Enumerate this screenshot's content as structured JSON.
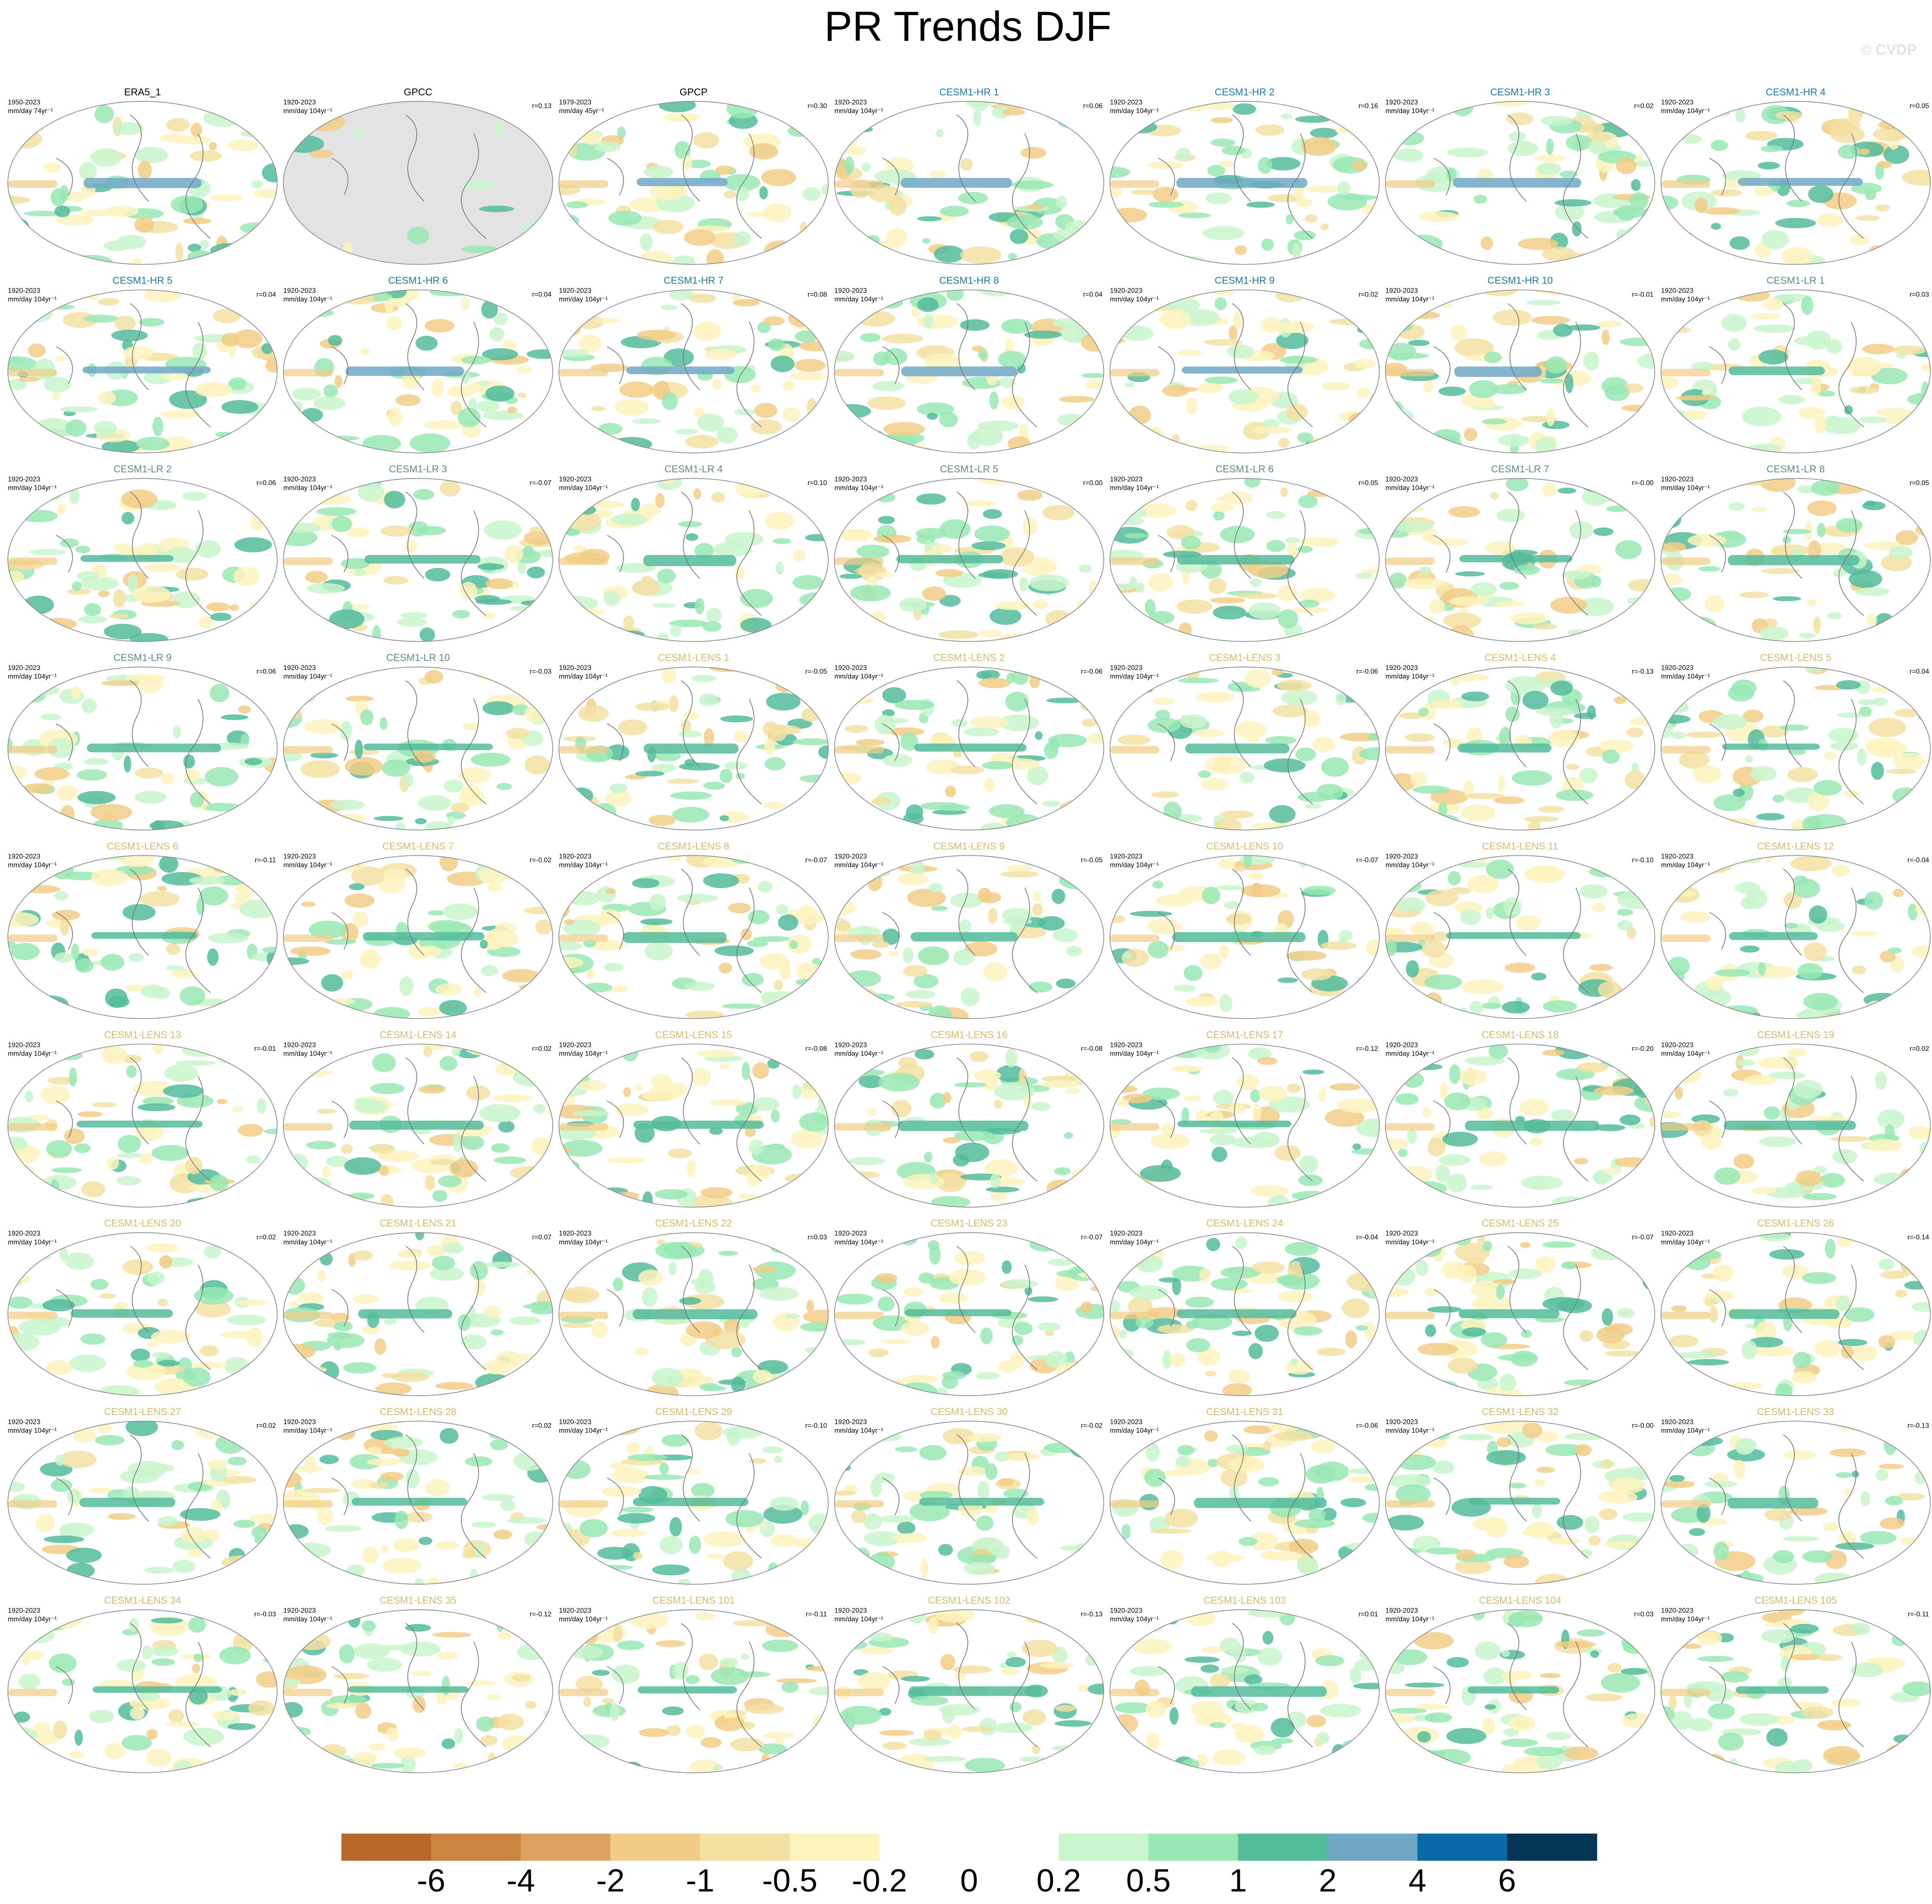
{
  "title": "PR Trends DJF",
  "watermark": "© CVDP",
  "panels": [
    {
      "title": "ERA5_1",
      "title_color": "#000000",
      "period": "1950-2023",
      "units": "mm/day 74yr⁻¹"
    },
    {
      "title": "GPCC",
      "title_color": "#000000",
      "period": "1920-2023",
      "units": "mm/day 104yr⁻¹",
      "r": "r=0.13"
    },
    {
      "title": "GPCP",
      "title_color": "#000000",
      "period": "1979-2023",
      "units": "mm/day 45yr⁻¹",
      "r": "r=0.30"
    },
    {
      "title": "CESM1-HR 1",
      "title_color": "#1f78a4",
      "period": "1920-2023",
      "units": "mm/day 104yr⁻¹",
      "r": "r=0.06"
    },
    {
      "title": "CESM1-HR 2",
      "title_color": "#1f78a4",
      "period": "1920-2023",
      "units": "mm/day 104yr⁻¹",
      "r": "r=0.16"
    },
    {
      "title": "CESM1-HR 3",
      "title_color": "#1f78a4",
      "period": "1920-2023",
      "units": "mm/day 104yr⁻¹",
      "r": "r=0.02"
    },
    {
      "title": "CESM1-HR 4",
      "title_color": "#1f78a4",
      "period": "1920-2023",
      "units": "mm/day 104yr⁻¹",
      "r": "r=0.05"
    },
    {
      "title": "CESM1-HR 5",
      "title_color": "#1f78a4",
      "period": "1920-2023",
      "units": "mm/day 104yr⁻¹",
      "r": "r=0.04"
    },
    {
      "title": "CESM1-HR 6",
      "title_color": "#1f78a4",
      "period": "1920-2023",
      "units": "mm/day 104yr⁻¹",
      "r": "r=0.04"
    },
    {
      "title": "CESM1-HR 7",
      "title_color": "#1f78a4",
      "period": "1920-2023",
      "units": "mm/day 104yr⁻¹",
      "r": "r=0.08"
    },
    {
      "title": "CESM1-HR 8",
      "title_color": "#1f78a4",
      "period": "1920-2023",
      "units": "mm/day 104yr⁻¹",
      "r": "r=0.04"
    },
    {
      "title": "CESM1-HR 9",
      "title_color": "#1f78a4",
      "period": "1920-2023",
      "units": "mm/day 104yr⁻¹",
      "r": "r=0.02"
    },
    {
      "title": "CESM1-HR 10",
      "title_color": "#1f78a4",
      "period": "1920-2023",
      "units": "mm/day 104yr⁻¹",
      "r": "r=-0.01"
    },
    {
      "title": "CESM1-LR 1",
      "title_color": "#5f8f6e",
      "period": "1920-2023",
      "units": "mm/day 104yr⁻¹",
      "r": "r=0.03"
    },
    {
      "title": "CESM1-LR 2",
      "title_color": "#5f8f6e",
      "period": "1920-2023",
      "units": "mm/day 104yr⁻¹",
      "r": "r=0.06"
    },
    {
      "title": "CESM1-LR 3",
      "title_color": "#5f8f6e",
      "period": "1920-2023",
      "units": "mm/day 104yr⁻¹",
      "r": "r=-0.07"
    },
    {
      "title": "CESM1-LR 4",
      "title_color": "#5f8f6e",
      "period": "1920-2023",
      "units": "mm/day 104yr⁻¹",
      "r": "r=0.10"
    },
    {
      "title": "CESM1-LR 5",
      "title_color": "#5f8f6e",
      "period": "1920-2023",
      "units": "mm/day 104yr⁻¹",
      "r": "r=0.00"
    },
    {
      "title": "CESM1-LR 6",
      "title_color": "#5f8f6e",
      "period": "1920-2023",
      "units": "mm/day 104yr⁻¹",
      "r": "r=0.05"
    },
    {
      "title": "CESM1-LR 7",
      "title_color": "#5f8f6e",
      "period": "1920-2023",
      "units": "mm/day 104yr⁻¹",
      "r": "r=-0.00"
    },
    {
      "title": "CESM1-LR 8",
      "title_color": "#5f8f6e",
      "period": "1920-2023",
      "units": "mm/day 104yr⁻¹",
      "r": "r=0.05"
    },
    {
      "title": "CESM1-LR 9",
      "title_color": "#5f8f6e",
      "period": "1920-2023",
      "units": "mm/day 104yr⁻¹",
      "r": "r=0.06"
    },
    {
      "title": "CESM1-LR 10",
      "title_color": "#5f8f6e",
      "period": "1920-2023",
      "units": "mm/day 104yr⁻¹",
      "r": "r=-0.03"
    },
    {
      "title": "CESM1-LENS 1",
      "title_color": "#d6bb6e",
      "period": "1920-2023",
      "units": "mm/day 104yr⁻¹",
      "r": "r=-0.05"
    },
    {
      "title": "CESM1-LENS 2",
      "title_color": "#d6bb6e",
      "period": "1920-2023",
      "units": "mm/day 104yr⁻¹",
      "r": "r=-0.06"
    },
    {
      "title": "CESM1-LENS 3",
      "title_color": "#d6bb6e",
      "period": "1920-2023",
      "units": "mm/day 104yr⁻¹",
      "r": "r=-0.06"
    },
    {
      "title": "CESM1-LENS 4",
      "title_color": "#d6bb6e",
      "period": "1920-2023",
      "units": "mm/day 104yr⁻¹",
      "r": "r=-0.13"
    },
    {
      "title": "CESM1-LENS 5",
      "title_color": "#d6bb6e",
      "period": "1920-2023",
      "units": "mm/day 104yr⁻¹",
      "r": "r=0.04"
    },
    {
      "title": "CESM1-LENS 6",
      "title_color": "#d6bb6e",
      "period": "1920-2023",
      "units": "mm/day 104yr⁻¹",
      "r": "r=-0.11"
    },
    {
      "title": "CESM1-LENS 7",
      "title_color": "#d6bb6e",
      "period": "1920-2023",
      "units": "mm/day 104yr⁻¹",
      "r": "r=-0.02"
    },
    {
      "title": "CESM1-LENS 8",
      "title_color": "#d6bb6e",
      "period": "1920-2023",
      "units": "mm/day 104yr⁻¹",
      "r": "r=-0.07"
    },
    {
      "title": "CESM1-LENS 9",
      "title_color": "#d6bb6e",
      "period": "1920-2023",
      "units": "mm/day 104yr⁻¹",
      "r": "r=-0.05"
    },
    {
      "title": "CESM1-LENS 10",
      "title_color": "#d6bb6e",
      "period": "1920-2023",
      "units": "mm/day 104yr⁻¹",
      "r": "r=-0.07"
    },
    {
      "title": "CESM1-LENS 11",
      "title_color": "#d6bb6e",
      "period": "1920-2023",
      "units": "mm/day 104yr⁻¹",
      "r": "r=-0.10"
    },
    {
      "title": "CESM1-LENS 12",
      "title_color": "#d6bb6e",
      "period": "1920-2023",
      "units": "mm/day 104yr⁻¹",
      "r": "r=-0.04"
    },
    {
      "title": "CESM1-LENS 13",
      "title_color": "#d6bb6e",
      "period": "1920-2023",
      "units": "mm/day 104yr⁻¹",
      "r": "r=-0.01"
    },
    {
      "title": "CESM1-LENS 14",
      "title_color": "#d6bb6e",
      "period": "1920-2023",
      "units": "mm/day 104yr⁻¹",
      "r": "r=0.02"
    },
    {
      "title": "CESM1-LENS 15",
      "title_color": "#d6bb6e",
      "period": "1920-2023",
      "units": "mm/day 104yr⁻¹",
      "r": "r=-0.08"
    },
    {
      "title": "CESM1-LENS 16",
      "title_color": "#d6bb6e",
      "period": "1920-2023",
      "units": "mm/day 104yr⁻¹",
      "r": "r=-0.08"
    },
    {
      "title": "CESM1-LENS 17",
      "title_color": "#d6bb6e",
      "period": "1920-2023",
      "units": "mm/day 104yr⁻¹",
      "r": "r=-0.12"
    },
    {
      "title": "CESM1-LENS 18",
      "title_color": "#d6bb6e",
      "period": "1920-2023",
      "units": "mm/day 104yr⁻¹",
      "r": "r=-0.20"
    },
    {
      "title": "CESM1-LENS 19",
      "title_color": "#d6bb6e",
      "period": "1920-2023",
      "units": "mm/day 104yr⁻¹",
      "r": "r=0.02"
    },
    {
      "title": "CESM1-LENS 20",
      "title_color": "#d6bb6e",
      "period": "1920-2023",
      "units": "mm/day 104yr⁻¹",
      "r": "r=0.02"
    },
    {
      "title": "CESM1-LENS 21",
      "title_color": "#d6bb6e",
      "period": "1920-2023",
      "units": "mm/day 104yr⁻¹",
      "r": "r=0.07"
    },
    {
      "title": "CESM1-LENS 22",
      "title_color": "#d6bb6e",
      "period": "1920-2023",
      "units": "mm/day 104yr⁻¹",
      "r": "r=0.03"
    },
    {
      "title": "CESM1-LENS 23",
      "title_color": "#d6bb6e",
      "period": "1920-2023",
      "units": "mm/day 104yr⁻¹",
      "r": "r=-0.07"
    },
    {
      "title": "CESM1-LENS 24",
      "title_color": "#d6bb6e",
      "period": "1920-2023",
      "units": "mm/day 104yr⁻¹",
      "r": "r=-0.04"
    },
    {
      "title": "CESM1-LENS 25",
      "title_color": "#d6bb6e",
      "period": "1920-2023",
      "units": "mm/day 104yr⁻¹",
      "r": "r=-0.07"
    },
    {
      "title": "CESM1-LENS 26",
      "title_color": "#d6bb6e",
      "period": "1920-2023",
      "units": "mm/day 104yr⁻¹",
      "r": "r=-0.14"
    },
    {
      "title": "CESM1-LENS 27",
      "title_color": "#d6bb6e",
      "period": "1920-2023",
      "units": "mm/day 104yr⁻¹",
      "r": "r=0.02"
    },
    {
      "title": "CESM1-LENS 28",
      "title_color": "#d6bb6e",
      "period": "1920-2023",
      "units": "mm/day 104yr⁻¹",
      "r": "r=0.02"
    },
    {
      "title": "CESM1-LENS 29",
      "title_color": "#d6bb6e",
      "period": "1920-2023",
      "units": "mm/day 104yr⁻¹",
      "r": "r=-0.10"
    },
    {
      "title": "CESM1-LENS 30",
      "title_color": "#d6bb6e",
      "period": "1920-2023",
      "units": "mm/day 104yr⁻¹",
      "r": "r=-0.02"
    },
    {
      "title": "CESM1-LENS 31",
      "title_color": "#d6bb6e",
      "period": "1920-2023",
      "units": "mm/day 104yr⁻¹",
      "r": "r=-0.06"
    },
    {
      "title": "CESM1-LENS 32",
      "title_color": "#d6bb6e",
      "period": "1920-2023",
      "units": "mm/day 104yr⁻¹",
      "r": "r=-0.00"
    },
    {
      "title": "CESM1-LENS 33",
      "title_color": "#d6bb6e",
      "period": "1920-2023",
      "units": "mm/day 104yr⁻¹",
      "r": "r=-0.13"
    },
    {
      "title": "CESM1-LENS 34",
      "title_color": "#d6bb6e",
      "period": "1920-2023",
      "units": "mm/day 104yr⁻¹",
      "r": "r=-0.03"
    },
    {
      "title": "CESM1-LENS 35",
      "title_color": "#d6bb6e",
      "period": "1920-2023",
      "units": "mm/day 104yr⁻¹",
      "r": "r=-0.12"
    },
    {
      "title": "CESM1-LENS 101",
      "title_color": "#d6bb6e",
      "period": "1920-2023",
      "units": "mm/day 104yr⁻¹",
      "r": "r=-0.11"
    },
    {
      "title": "CESM1-LENS 102",
      "title_color": "#d6bb6e",
      "period": "1920-2023",
      "units": "mm/day 104yr⁻¹",
      "r": "r=-0.13"
    },
    {
      "title": "CESM1-LENS 103",
      "title_color": "#d6bb6e",
      "period": "1920-2023",
      "units": "mm/day 104yr⁻¹",
      "r": "r=0.01"
    },
    {
      "title": "CESM1-LENS 104",
      "title_color": "#d6bb6e",
      "period": "1920-2023",
      "units": "mm/day 104yr⁻¹",
      "r": "r=0.03"
    },
    {
      "title": "CESM1-LENS 105",
      "title_color": "#d6bb6e",
      "period": "1920-2023",
      "units": "mm/day 104yr⁻¹",
      "r": "r=-0.11"
    }
  ],
  "colorbar": {
    "levels": [
      -6,
      -4,
      -2,
      -1,
      -0.5,
      -0.2,
      0,
      0.2,
      0.5,
      1,
      2,
      4,
      6
    ],
    "colors": [
      "#b5682a",
      "#cc8540",
      "#dca262",
      "#f2cc86",
      "#f3e1a3",
      "#fdf3bd",
      "#ffffff",
      "#ffffff",
      "#c9f5cd",
      "#98e8b4",
      "#54bb9b",
      "#70a8c6",
      "#0a6aa8",
      "#043456"
    ]
  }
}
